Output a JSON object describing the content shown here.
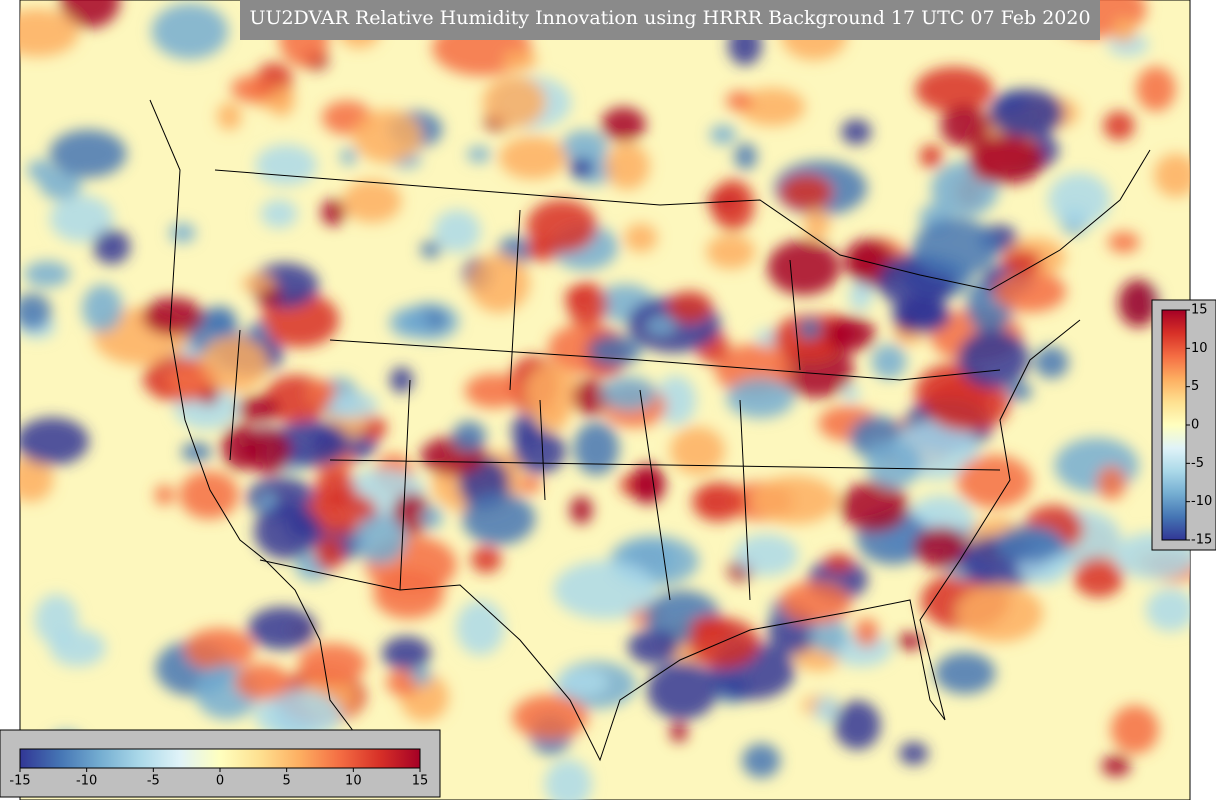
{
  "title": "UU2DVAR Relative Humidity Innovation using HRRR Background 17 UTC 07 Feb 2020",
  "colormap": [
    "#313695",
    "#4575b4",
    "#74add1",
    "#abd9e9",
    "#e0f3f8",
    "#ffffbf",
    "#fee090",
    "#fdae61",
    "#f46d43",
    "#d73027",
    "#a50026"
  ],
  "colorbar_horizontal": {
    "range": [
      -15,
      15
    ],
    "ticks": [
      -15,
      -10,
      -5,
      0,
      5,
      10,
      15
    ]
  },
  "colorbar_vertical": {
    "range": [
      -15,
      15
    ],
    "ticks": [
      -15,
      -10,
      -5,
      0,
      5,
      10,
      15
    ]
  }
}
